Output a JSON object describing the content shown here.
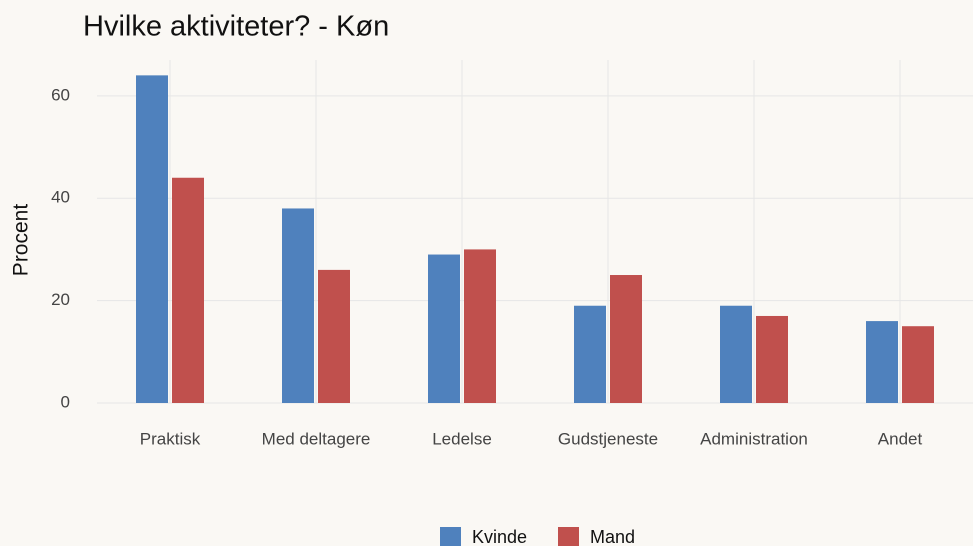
{
  "chart_data": {
    "type": "bar",
    "title": "Hvilke aktiviteter? - Køn",
    "y_label": "Procent",
    "categories": [
      "Praktisk",
      "Med deltagere",
      "Ledelse",
      "Gudstjeneste",
      "Administration",
      "Andet"
    ],
    "series": [
      {
        "name": "Kvinde",
        "color": "#4f81bd",
        "values": [
          64,
          38,
          29,
          19,
          19,
          16
        ]
      },
      {
        "name": "Mand",
        "color": "#c0504d",
        "values": [
          44,
          26,
          30,
          25,
          17,
          15
        ]
      }
    ],
    "ylim": [
      0,
      67
    ],
    "yticks": [
      0,
      20,
      40,
      60
    ],
    "grid": true,
    "legend": "bottom"
  }
}
